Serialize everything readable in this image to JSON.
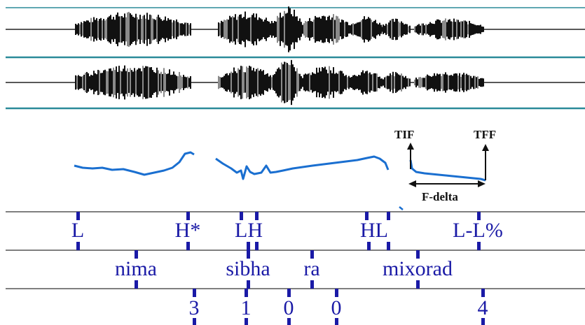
{
  "waveform": {
    "channels": 2,
    "color": "#111111",
    "border_color": "#2a8a99"
  },
  "pitch": {
    "color": "#1a6fd0",
    "annotations": {
      "tif_label": "TIF",
      "tff_label": "TFF",
      "delta_label": "F-delta"
    }
  },
  "tiers": {
    "color": "#1a1aa6",
    "tones": [
      {
        "label": "L"
      },
      {
        "label": "H*"
      },
      {
        "label": "LH"
      },
      {
        "label": "HL"
      },
      {
        "label": "L-L%"
      }
    ],
    "words": [
      {
        "label": "nima"
      },
      {
        "label": "sibha"
      },
      {
        "label": "ra"
      },
      {
        "label": "mixorad"
      }
    ],
    "breaks": [
      {
        "label": "3"
      },
      {
        "label": "1"
      },
      {
        "label": "0"
      },
      {
        "label": "0"
      },
      {
        "label": "4"
      }
    ]
  }
}
